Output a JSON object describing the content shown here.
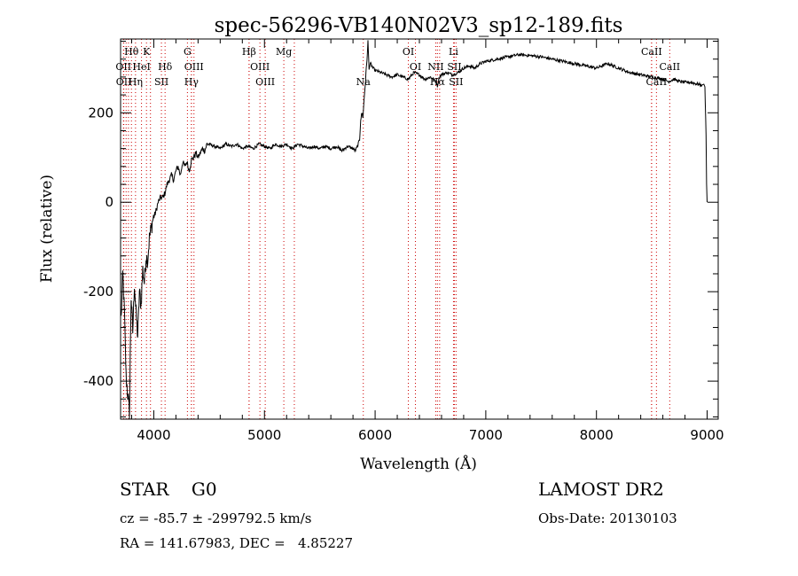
{
  "chart_data": {
    "type": "line",
    "title": "spec-56296-VB140N02V3_sp12-189.fits",
    "xlabel": "Wavelength (Å)",
    "ylabel": "Flux (relative)",
    "xlim": [
      3700,
      9100
    ],
    "ylim": [
      -485,
      365
    ],
    "x_ticks": [
      4000,
      5000,
      6000,
      7000,
      8000,
      9000
    ],
    "y_ticks": [
      -400,
      -200,
      0,
      200
    ],
    "grid": false,
    "legend": "none",
    "line_color": "#000000",
    "marker_color": "#cc0000",
    "series": [
      {
        "x": [
          3705,
          3720,
          3735,
          3750,
          3765,
          3780,
          3795,
          3810,
          3825,
          3840,
          3855,
          3870,
          3885,
          3900,
          3915,
          3930,
          3945,
          3960,
          3975,
          3990,
          4005,
          4020,
          4040,
          4060,
          4080,
          4100,
          4120,
          4140,
          4160,
          4180,
          4200,
          4220,
          4240,
          4260,
          4280,
          4300,
          4320,
          4340,
          4360,
          4380,
          4400,
          4420,
          4440,
          4460,
          4480,
          4500,
          4550,
          4600,
          4650,
          4700,
          4750,
          4800,
          4850,
          4900,
          4950,
          5000,
          5050,
          5100,
          5150,
          5200,
          5250,
          5300,
          5350,
          5400,
          5450,
          5500,
          5550,
          5600,
          5650,
          5700,
          5750,
          5800,
          5820,
          5840,
          5860,
          5870,
          5880,
          5890,
          5900,
          5910,
          5920,
          5930,
          5935,
          5945,
          5960,
          5980,
          6000,
          6050,
          6100,
          6150,
          6200,
          6250,
          6300,
          6350,
          6400,
          6450,
          6500,
          6550,
          6563,
          6580,
          6600,
          6650,
          6700,
          6750,
          6800,
          6850,
          6900,
          6950,
          7000,
          7100,
          7200,
          7300,
          7400,
          7500,
          7600,
          7700,
          7800,
          7900,
          8000,
          8100,
          8200,
          8300,
          8400,
          8500,
          8550,
          8600,
          8650,
          8700,
          8750,
          8800,
          8850,
          8900,
          8950,
          8970,
          8980,
          8990,
          8995,
          9000
        ],
        "y": [
          -260,
          -160,
          -250,
          -390,
          -430,
          -470,
          -210,
          -290,
          -180,
          -250,
          -300,
          -200,
          -230,
          -150,
          -180,
          -120,
          -130,
          -80,
          -60,
          -40,
          -30,
          -20,
          0,
          10,
          10,
          20,
          40,
          50,
          60,
          50,
          70,
          80,
          60,
          90,
          80,
          90,
          70,
          95,
          100,
          110,
          100,
          110,
          120,
          115,
          130,
          130,
          125,
          120,
          130,
          125,
          130,
          120,
          125,
          120,
          130,
          125,
          120,
          130,
          125,
          130,
          120,
          130,
          125,
          120,
          125,
          120,
          125,
          120,
          125,
          115,
          125,
          120,
          115,
          125,
          140,
          185,
          200,
          190,
          230,
          260,
          300,
          330,
          360,
          300,
          310,
          300,
          295,
          290,
          285,
          280,
          285,
          280,
          275,
          290,
          285,
          275,
          280,
          270,
          260,
          280,
          285,
          290,
          285,
          290,
          300,
          305,
          300,
          310,
          315,
          320,
          325,
          330,
          328,
          325,
          320,
          315,
          310,
          305,
          300,
          310,
          300,
          290,
          285,
          280,
          278,
          275,
          270,
          275,
          270,
          268,
          268,
          265,
          262,
          264,
          258,
          150,
          40,
          0
        ]
      }
    ],
    "spectral_lines": [
      {
        "label": "Hθ",
        "x": 3798,
        "row": 0
      },
      {
        "label": "K",
        "x": 3934,
        "row": 0
      },
      {
        "label": "G",
        "x": 4304,
        "row": 0
      },
      {
        "label": "Hβ",
        "x": 4861,
        "row": 0
      },
      {
        "label": "Mg",
        "x": 5175,
        "row": 0
      },
      {
        "label": "OI",
        "x": 6300,
        "row": 0
      },
      {
        "label": "Li",
        "x": 6708,
        "row": 0
      },
      {
        "label": "CaII",
        "x": 8498,
        "row": 0
      },
      {
        "label": "OII",
        "x": 3726,
        "row": 1
      },
      {
        "label": "HeI",
        "x": 3889,
        "row": 1
      },
      {
        "label": "Hδ",
        "x": 4102,
        "row": 1
      },
      {
        "label": "OIII",
        "x": 4363,
        "row": 1
      },
      {
        "label": "OIII",
        "x": 4959,
        "row": 1
      },
      {
        "label": "OI",
        "x": 6364,
        "row": 1
      },
      {
        "label": "NII",
        "x": 6548,
        "row": 1
      },
      {
        "label": "SII",
        "x": 6716,
        "row": 1
      },
      {
        "label": "CaII",
        "x": 8662,
        "row": 1
      },
      {
        "label": "OII",
        "x": 3729,
        "row": 2
      },
      {
        "label": "Hη",
        "x": 3835,
        "row": 2
      },
      {
        "label": "SII",
        "x": 4069,
        "row": 2
      },
      {
        "label": "Hγ",
        "x": 4340,
        "row": 2
      },
      {
        "label": "OIII",
        "x": 5007,
        "row": 2
      },
      {
        "label": "Na",
        "x": 5893,
        "row": 2
      },
      {
        "label": "Hα",
        "x": 6563,
        "row": 2
      },
      {
        "label": "SII",
        "x": 6731,
        "row": 2
      },
      {
        "label": "CaII",
        "x": 8542,
        "row": 2
      }
    ],
    "marker_lines_plain": [
      3750,
      3771,
      3970,
      4340,
      4861,
      5270,
      6583,
      8498
    ]
  },
  "info": {
    "object_class": "STAR",
    "subclass": "G0",
    "survey": "LAMOST DR2",
    "cz": "cz = -85.7 ± -299792.5 km/s",
    "obs_date": "Obs-Date: 20130103",
    "radec": "RA = 141.67983, DEC =   4.85227"
  }
}
